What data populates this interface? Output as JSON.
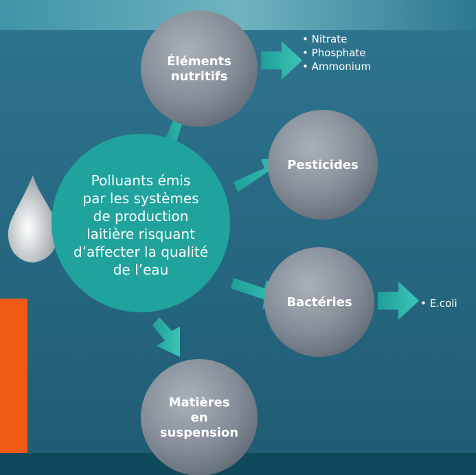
{
  "center": {
    "lines": [
      "Polluants émis",
      "par les systèmes",
      "de production",
      "laitière risquant",
      "d’affecter la qualité",
      "de l’eau"
    ]
  },
  "nodes": [
    {
      "lines": [
        "Éléments",
        "nutritifs"
      ],
      "items": [
        "• Nitrate",
        "• Phosphate",
        "• Ammonium"
      ]
    },
    {
      "lines": [
        "Pesticides"
      ],
      "items": []
    },
    {
      "lines": [
        "Bactéries"
      ],
      "items": [
        "• E.coli"
      ]
    },
    {
      "lines": [
        "Matières",
        "en",
        "suspension"
      ],
      "items": []
    }
  ]
}
